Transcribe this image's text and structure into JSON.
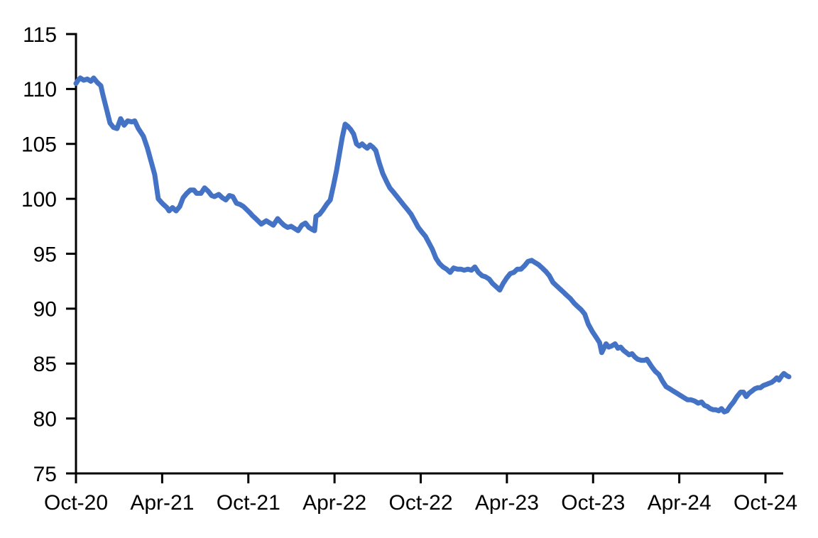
{
  "page": {
    "background_color": "#FFFFFF"
  },
  "chart_data": {
    "type": "line",
    "title": "",
    "subtitle": "",
    "xlabel": "",
    "ylabel": "",
    "grid": false,
    "legend": false,
    "axis_color": "#000000",
    "label_color": "#000000",
    "x_axis": {
      "unit": "months since Oct-2020",
      "tick_labels": [
        "Oct-20",
        "Apr-21",
        "Oct-21",
        "Apr-22",
        "Oct-22",
        "Apr-23",
        "Oct-23",
        "Apr-24",
        "Oct-24"
      ],
      "tick_positions": [
        0,
        6,
        12,
        18,
        24,
        30,
        36,
        42,
        48
      ],
      "range": [
        0,
        49.63
      ]
    },
    "y_axis": {
      "min": 75,
      "max": 115,
      "step": 5,
      "tick_labels": [
        "75",
        "80",
        "85",
        "90",
        "95",
        "100",
        "105",
        "110",
        "115"
      ],
      "tick_values": [
        75,
        80,
        85,
        90,
        95,
        100,
        105,
        110,
        115
      ]
    },
    "series": [
      {
        "name": "index-line",
        "color": "#4472C4",
        "stroke_width": 7,
        "points": [
          [
            0,
            110.5
          ],
          [
            0.15,
            110.8
          ],
          [
            0.3,
            111
          ],
          [
            0.54,
            110.8
          ],
          [
            0.79,
            110.9
          ],
          [
            1.04,
            110.7
          ],
          [
            1.23,
            111
          ],
          [
            1.48,
            110.6
          ],
          [
            1.73,
            110.3
          ],
          [
            1.87,
            109.5
          ],
          [
            2.12,
            108.2
          ],
          [
            2.37,
            106.9
          ],
          [
            2.61,
            106.5
          ],
          [
            2.86,
            106.4
          ],
          [
            3.11,
            107.3
          ],
          [
            3.35,
            106.7
          ],
          [
            3.6,
            107.1
          ],
          [
            3.9,
            107
          ],
          [
            4.09,
            107.1
          ],
          [
            4.34,
            106.4
          ],
          [
            4.69,
            105.7
          ],
          [
            4.98,
            104.6
          ],
          [
            5.23,
            103.4
          ],
          [
            5.48,
            102.2
          ],
          [
            5.73,
            100
          ],
          [
            5.93,
            99.7
          ],
          [
            6.08,
            99.5
          ],
          [
            6.33,
            99.2
          ],
          [
            6.48,
            98.9
          ],
          [
            6.72,
            99.2
          ],
          [
            6.97,
            98.9
          ],
          [
            7.22,
            99.3
          ],
          [
            7.46,
            100.1
          ],
          [
            7.71,
            100.5
          ],
          [
            7.96,
            100.8
          ],
          [
            8.21,
            100.8
          ],
          [
            8.4,
            100.5
          ],
          [
            8.7,
            100.5
          ],
          [
            8.95,
            101
          ],
          [
            9.2,
            100.7
          ],
          [
            9.44,
            100.3
          ],
          [
            9.64,
            100.2
          ],
          [
            9.94,
            100.4
          ],
          [
            10.19,
            100.1
          ],
          [
            10.43,
            99.9
          ],
          [
            10.68,
            100.3
          ],
          [
            10.92,
            100.2
          ],
          [
            11.17,
            99.6
          ],
          [
            11.41,
            99.5
          ],
          [
            11.66,
            99.3
          ],
          [
            11.9,
            99
          ],
          [
            12.13,
            98.7
          ],
          [
            12.26,
            98.5
          ],
          [
            12.51,
            98.2
          ],
          [
            12.9,
            97.7
          ],
          [
            13.25,
            98
          ],
          [
            13.5,
            97.8
          ],
          [
            13.74,
            97.6
          ],
          [
            14.04,
            98.2
          ],
          [
            14.24,
            97.9
          ],
          [
            14.48,
            97.6
          ],
          [
            14.73,
            97.4
          ],
          [
            14.98,
            97.5
          ],
          [
            15.22,
            97.3
          ],
          [
            15.47,
            97.1
          ],
          [
            15.72,
            97.6
          ],
          [
            15.97,
            97.8
          ],
          [
            16.21,
            97.4
          ],
          [
            16.46,
            97.2
          ],
          [
            16.61,
            97.1
          ],
          [
            16.71,
            98.4
          ],
          [
            16.96,
            98.6
          ],
          [
            17.2,
            99
          ],
          [
            17.45,
            99.5
          ],
          [
            17.7,
            99.9
          ],
          [
            17.94,
            101.3
          ],
          [
            18.14,
            102.6
          ],
          [
            18.34,
            104.1
          ],
          [
            18.54,
            105.6
          ],
          [
            18.74,
            106.8
          ],
          [
            18.93,
            106.6
          ],
          [
            19.13,
            106.3
          ],
          [
            19.33,
            105.9
          ],
          [
            19.53,
            105
          ],
          [
            19.72,
            104.8
          ],
          [
            19.92,
            105
          ],
          [
            20.08,
            104.8
          ],
          [
            20.28,
            104.6
          ],
          [
            20.47,
            104.9
          ],
          [
            20.67,
            104.7
          ],
          [
            20.87,
            104.4
          ],
          [
            21.11,
            103.3
          ],
          [
            21.36,
            102.3
          ],
          [
            21.61,
            101.6
          ],
          [
            21.85,
            101
          ],
          [
            22.1,
            100.6
          ],
          [
            22.35,
            100.2
          ],
          [
            22.59,
            99.8
          ],
          [
            22.84,
            99.4
          ],
          [
            23.09,
            99
          ],
          [
            23.33,
            98.6
          ],
          [
            23.58,
            98
          ],
          [
            23.83,
            97.4
          ],
          [
            24.07,
            97
          ],
          [
            24.32,
            96.6
          ],
          [
            24.57,
            96
          ],
          [
            24.81,
            95.4
          ],
          [
            25.06,
            94.6
          ],
          [
            25.31,
            94.1
          ],
          [
            25.55,
            93.8
          ],
          [
            25.8,
            93.6
          ],
          [
            26.05,
            93.3
          ],
          [
            26.29,
            93.7
          ],
          [
            26.54,
            93.6
          ],
          [
            26.79,
            93.6
          ],
          [
            27.03,
            93.5
          ],
          [
            27.28,
            93.6
          ],
          [
            27.53,
            93.5
          ],
          [
            27.77,
            93.8
          ],
          [
            28.02,
            93.3
          ],
          [
            28.27,
            93
          ],
          [
            28.51,
            92.9
          ],
          [
            28.76,
            92.7
          ],
          [
            29,
            92.3
          ],
          [
            29.25,
            92
          ],
          [
            29.5,
            91.7
          ],
          [
            29.74,
            92.3
          ],
          [
            29.99,
            92.8
          ],
          [
            30.24,
            93.2
          ],
          [
            30.48,
            93.3
          ],
          [
            30.73,
            93.6
          ],
          [
            30.98,
            93.6
          ],
          [
            31.22,
            93.9
          ],
          [
            31.47,
            94.3
          ],
          [
            31.72,
            94.4
          ],
          [
            31.96,
            94.2
          ],
          [
            32.21,
            94
          ],
          [
            32.46,
            93.7
          ],
          [
            32.7,
            93.4
          ],
          [
            32.95,
            93
          ],
          [
            33.2,
            92.4
          ],
          [
            33.44,
            92.1
          ],
          [
            33.69,
            91.8
          ],
          [
            33.94,
            91.5
          ],
          [
            34.18,
            91.2
          ],
          [
            34.43,
            90.9
          ],
          [
            34.68,
            90.5
          ],
          [
            34.92,
            90.2
          ],
          [
            35.17,
            89.9
          ],
          [
            35.42,
            89.5
          ],
          [
            35.66,
            88.6
          ],
          [
            35.96,
            87.9
          ],
          [
            36.21,
            87.4
          ],
          [
            36.45,
            86.9
          ],
          [
            36.6,
            86
          ],
          [
            36.75,
            86.4
          ],
          [
            36.9,
            86.8
          ],
          [
            37.09,
            86.5
          ],
          [
            37.29,
            86.6
          ],
          [
            37.53,
            86.8
          ],
          [
            37.73,
            86.4
          ],
          [
            37.92,
            86.5
          ],
          [
            38.12,
            86.2
          ],
          [
            38.32,
            86
          ],
          [
            38.51,
            85.8
          ],
          [
            38.71,
            85.9
          ],
          [
            38.91,
            85.6
          ],
          [
            39.1,
            85.4
          ],
          [
            39.35,
            85.3
          ],
          [
            39.6,
            85.3
          ],
          [
            39.74,
            85.4
          ],
          [
            39.94,
            85
          ],
          [
            40.09,
            84.7
          ],
          [
            40.33,
            84.3
          ],
          [
            40.58,
            84
          ],
          [
            40.83,
            83.4
          ],
          [
            41.08,
            82.9
          ],
          [
            41.34,
            82.7
          ],
          [
            41.58,
            82.5
          ],
          [
            41.83,
            82.3
          ],
          [
            42.08,
            82.1
          ],
          [
            42.32,
            81.9
          ],
          [
            42.57,
            81.7
          ],
          [
            42.82,
            81.7
          ],
          [
            43.06,
            81.6
          ],
          [
            43.31,
            81.4
          ],
          [
            43.56,
            81.5
          ],
          [
            43.75,
            81.2
          ],
          [
            43.95,
            81.1
          ],
          [
            44.15,
            80.9
          ],
          [
            44.35,
            80.8
          ],
          [
            44.54,
            80.8
          ],
          [
            44.74,
            80.7
          ],
          [
            44.94,
            80.9
          ],
          [
            45.13,
            80.6
          ],
          [
            45.33,
            80.7
          ],
          [
            45.53,
            81.1
          ],
          [
            45.78,
            81.5
          ],
          [
            46.02,
            82
          ],
          [
            46.27,
            82.4
          ],
          [
            46.47,
            82.4
          ],
          [
            46.66,
            82
          ],
          [
            46.86,
            82.3
          ],
          [
            47.06,
            82.5
          ],
          [
            47.26,
            82.7
          ],
          [
            47.45,
            82.8
          ],
          [
            47.65,
            82.8
          ],
          [
            47.85,
            83
          ],
          [
            48.05,
            83.1
          ],
          [
            48.24,
            83.2
          ],
          [
            48.44,
            83.3
          ],
          [
            48.64,
            83.5
          ],
          [
            48.79,
            83.7
          ],
          [
            48.94,
            83.5
          ],
          [
            49.14,
            83.9
          ],
          [
            49.28,
            84.1
          ],
          [
            49.48,
            83.9
          ],
          [
            49.63,
            83.8
          ]
        ]
      }
    ]
  }
}
